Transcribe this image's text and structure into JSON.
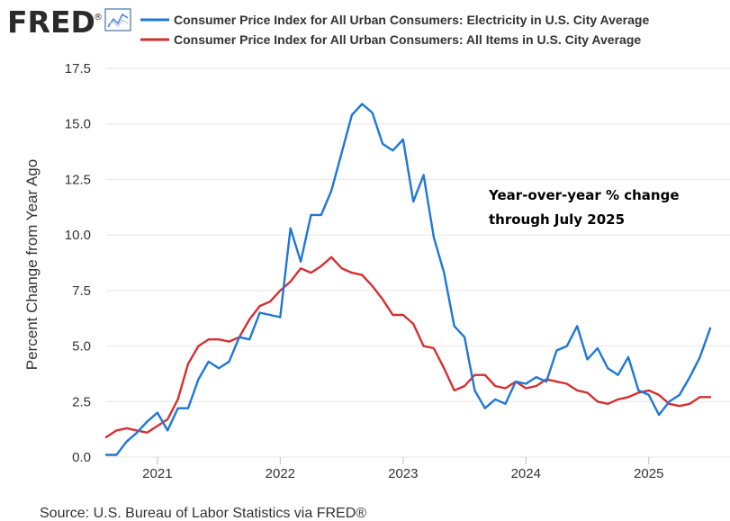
{
  "header": {
    "logo_text": "FRED",
    "logo_mark": "®",
    "logo_icon": "line-chart-icon"
  },
  "colors": {
    "electricity": "#1f77d6",
    "all_items": "#d62f2f",
    "grid": "#e6e6e6",
    "text": "#333333",
    "logo": "#2a2a2a"
  },
  "footer": {
    "source": "Source: U.S. Bureau of Labor Statistics via FRED®"
  },
  "chart_data": {
    "type": "line",
    "title": "",
    "ylabel": "Percent Change from Year Ago",
    "xlabel": "",
    "ylim": [
      0.0,
      17.5
    ],
    "yticks": [
      0.0,
      2.5,
      5.0,
      7.5,
      10.0,
      12.5,
      15.0,
      17.5
    ],
    "ytick_labels": [
      "0.0",
      "2.5",
      "5.0",
      "7.5",
      "10.0",
      "12.5",
      "15.0",
      "17.5"
    ],
    "xlim": [
      "2020-08",
      "2025-07"
    ],
    "xticks": [
      "2021-01",
      "2022-01",
      "2023-01",
      "2024-01",
      "2025-01"
    ],
    "xtick_labels": [
      "2021",
      "2022",
      "2023",
      "2024",
      "2025"
    ],
    "grid": "horizontal",
    "legend_position": "top",
    "annotation": [
      "Year-over-year % change",
      "through July 2025"
    ],
    "x": [
      "2020-08",
      "2020-09",
      "2020-10",
      "2020-11",
      "2020-12",
      "2021-01",
      "2021-02",
      "2021-03",
      "2021-04",
      "2021-05",
      "2021-06",
      "2021-07",
      "2021-08",
      "2021-09",
      "2021-10",
      "2021-11",
      "2021-12",
      "2022-01",
      "2022-02",
      "2022-03",
      "2022-04",
      "2022-05",
      "2022-06",
      "2022-07",
      "2022-08",
      "2022-09",
      "2022-10",
      "2022-11",
      "2022-12",
      "2023-01",
      "2023-02",
      "2023-03",
      "2023-04",
      "2023-05",
      "2023-06",
      "2023-07",
      "2023-08",
      "2023-09",
      "2023-10",
      "2023-11",
      "2023-12",
      "2024-01",
      "2024-02",
      "2024-03",
      "2024-04",
      "2024-05",
      "2024-06",
      "2024-07",
      "2024-08",
      "2024-09",
      "2024-10",
      "2024-11",
      "2024-12",
      "2025-01",
      "2025-02",
      "2025-03",
      "2025-04",
      "2025-05",
      "2025-06",
      "2025-07"
    ],
    "series": [
      {
        "name": "Consumer Price Index for All Urban Consumers: Electricity in U.S. City Average",
        "color": "#1f77d6",
        "values": [
          0.1,
          0.1,
          0.7,
          1.1,
          1.6,
          2.0,
          1.2,
          2.2,
          2.2,
          3.5,
          4.3,
          4.0,
          4.3,
          5.4,
          5.3,
          6.5,
          6.4,
          6.3,
          10.3,
          8.8,
          10.9,
          10.9,
          12.0,
          13.7,
          15.4,
          15.9,
          15.5,
          14.1,
          13.8,
          14.3,
          11.5,
          12.7,
          9.9,
          8.3,
          5.9,
          5.4,
          3.0,
          2.2,
          2.6,
          2.4,
          3.4,
          3.3,
          3.6,
          3.4,
          4.8,
          5.0,
          5.9,
          4.4,
          4.9,
          4.0,
          3.7,
          4.5,
          3.0,
          2.8,
          1.9,
          2.5,
          2.8,
          3.6,
          4.5,
          5.8
        ]
      },
      {
        "name": "Consumer Price Index for All Urban Consumers: All Items in U.S. City Average",
        "color": "#d62f2f",
        "values": [
          0.9,
          1.2,
          1.3,
          1.2,
          1.1,
          1.4,
          1.7,
          2.6,
          4.2,
          5.0,
          5.3,
          5.3,
          5.2,
          5.4,
          6.2,
          6.8,
          7.0,
          7.5,
          7.9,
          8.5,
          8.3,
          8.6,
          9.0,
          8.5,
          8.3,
          8.2,
          7.7,
          7.1,
          6.4,
          6.4,
          6.0,
          5.0,
          4.9,
          4.0,
          3.0,
          3.2,
          3.7,
          3.7,
          3.2,
          3.1,
          3.4,
          3.1,
          3.2,
          3.5,
          3.4,
          3.3,
          3.0,
          2.9,
          2.5,
          2.4,
          2.6,
          2.7,
          2.9,
          3.0,
          2.8,
          2.4,
          2.3,
          2.4,
          2.7,
          2.7
        ]
      }
    ]
  }
}
